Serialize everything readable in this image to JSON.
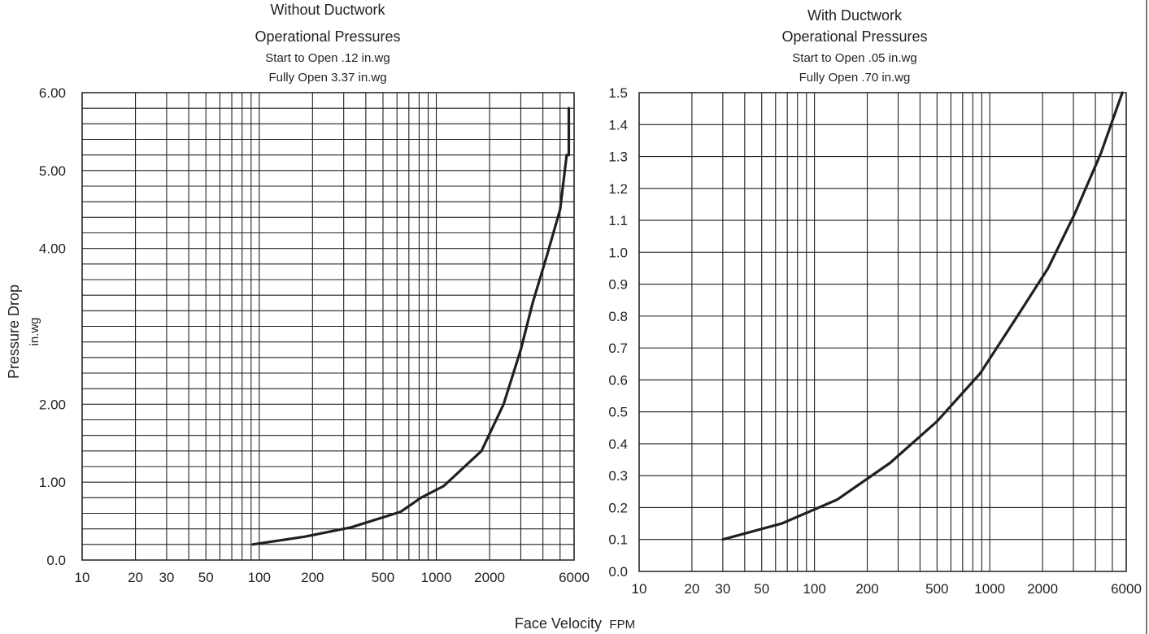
{
  "chart_data": [
    {
      "type": "line",
      "title": "Without Ductwork",
      "subtitle": "Operational Pressures",
      "notes": [
        "Start to Open .12 in.wg",
        "Fully Open 3.37 in.wg"
      ],
      "ylabel": "Pressure Drop",
      "yunit": "in.wg",
      "x_scale": "log",
      "xlim": [
        10,
        6000
      ],
      "ylim": [
        0,
        6
      ],
      "x_ticks": [
        10,
        20,
        30,
        50,
        100,
        200,
        500,
        1000,
        2000,
        6000
      ],
      "x_tick_labels": [
        "10",
        "20",
        "30",
        "50",
        "100",
        "200",
        "500",
        "1000",
        "2000",
        "6000"
      ],
      "y_ticks": [
        0,
        1,
        2,
        4,
        5,
        6
      ],
      "y_tick_labels": [
        "0.0",
        "1.00",
        "2.00",
        "4.00",
        "5.00",
        "6.00"
      ],
      "x_gridlines": [
        10,
        20,
        30,
        40,
        50,
        60,
        70,
        80,
        90,
        100,
        200,
        300,
        400,
        500,
        600,
        700,
        800,
        900,
        1000,
        2000,
        3000,
        4000,
        5000,
        6000
      ],
      "y_grid_step": 0.2,
      "grid": true,
      "series": [
        {
          "x": [
            92,
            180,
            330,
            630,
            820,
            1100,
            1800,
            2400,
            3000,
            3500,
            4200,
            5000,
            5450,
            5600,
            5600
          ],
          "y": [
            0.2,
            0.3,
            0.42,
            0.62,
            0.8,
            0.95,
            1.4,
            2.0,
            2.7,
            3.3,
            3.9,
            4.5,
            5.2,
            5.2,
            5.8
          ]
        }
      ]
    },
    {
      "type": "line",
      "title": "With Ductwork",
      "subtitle": "Operational Pressures",
      "notes": [
        "Start to Open .05 in.wg",
        "Fully Open .70 in.wg"
      ],
      "x_scale": "log",
      "xlim": [
        10,
        6000
      ],
      "ylim": [
        0,
        1.5
      ],
      "x_ticks": [
        10,
        20,
        30,
        50,
        100,
        200,
        500,
        1000,
        2000,
        6000
      ],
      "x_tick_labels": [
        "10",
        "20",
        "30",
        "50",
        "100",
        "200",
        "500",
        "1000",
        "2000",
        "6000"
      ],
      "y_ticks": [
        0,
        0.1,
        0.2,
        0.3,
        0.4,
        0.5,
        0.6,
        0.7,
        0.8,
        0.9,
        1.0,
        1.1,
        1.2,
        1.3,
        1.4,
        1.5
      ],
      "y_tick_labels": [
        "0.0",
        "0.1",
        "0.2",
        "0.3",
        "0.4",
        "0.5",
        "0.6",
        "0.7",
        "0.8",
        "0.9",
        "1.0",
        "1.1",
        "1.2",
        "1.3",
        "1.4",
        "1.5"
      ],
      "x_gridlines": [
        10,
        20,
        30,
        40,
        50,
        60,
        70,
        80,
        90,
        100,
        200,
        300,
        400,
        500,
        600,
        700,
        800,
        900,
        1000,
        2000,
        3000,
        4000,
        5000,
        6000
      ],
      "y_grid_step": 0.1,
      "grid": true,
      "series": [
        {
          "x": [
            30,
            65,
            135,
            270,
            500,
            880,
            1400,
            2150,
            3050,
            4300,
            5700
          ],
          "y": [
            0.1,
            0.15,
            0.225,
            0.34,
            0.47,
            0.62,
            0.79,
            0.95,
            1.12,
            1.31,
            1.5
          ]
        }
      ]
    }
  ],
  "xlabel": "Face Velocity",
  "xunit": "FPM",
  "colors": {
    "ink": "#231f20",
    "background": "#ffffff"
  }
}
